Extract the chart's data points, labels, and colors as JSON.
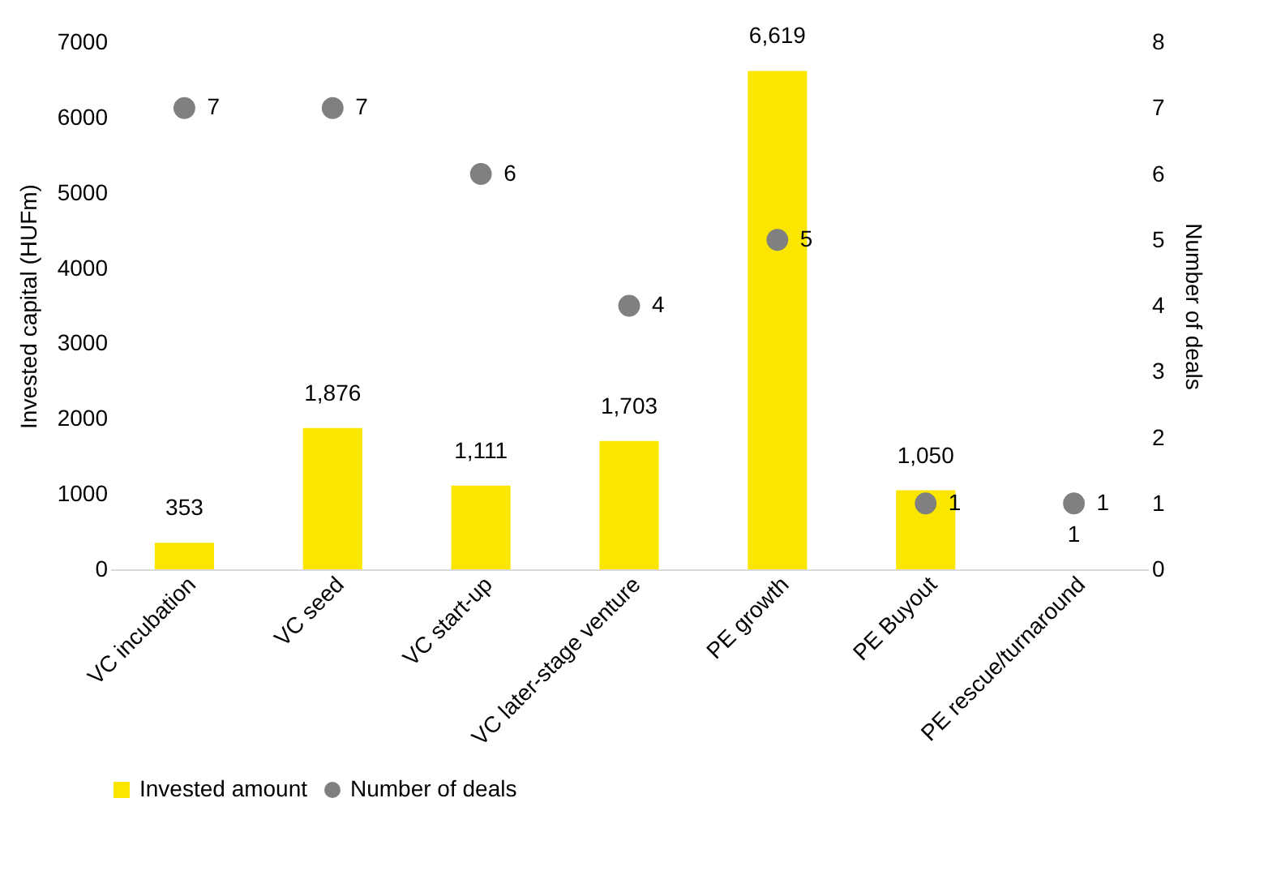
{
  "chart_data": {
    "type": "bar",
    "categories": [
      "VC incubation",
      "VC seed",
      "VC start-up",
      "VC later-stage venture",
      "PE growth",
      "PE Buyout",
      "PE rescue/turnaround"
    ],
    "ylabel": "Invested capital (HUFm)",
    "y2label": "Number of deals",
    "ylim": [
      0,
      7000
    ],
    "yticks": [
      0,
      1000,
      2000,
      3000,
      4000,
      5000,
      6000,
      7000
    ],
    "y2lim": [
      0,
      8
    ],
    "y2ticks": [
      0,
      1,
      2,
      3,
      4,
      5,
      6,
      7,
      8
    ],
    "legend": "bottom",
    "grid": false,
    "marker": "circle",
    "series": [
      {
        "name": "Invested amount",
        "color": "#fae600",
        "values": [
          353,
          1876,
          1111,
          1703,
          6619,
          1050,
          1
        ],
        "value_labels": [
          "353",
          "1,876",
          "1,111",
          "1,703",
          "6,619",
          "1,050",
          "1"
        ]
      },
      {
        "name": "Number of deals",
        "type": "scatter",
        "axis": "y2",
        "color": "#808080",
        "values": [
          7,
          7,
          6,
          4,
          5,
          1,
          1
        ],
        "value_labels": [
          "7",
          "7",
          "6",
          "4",
          "5",
          "1",
          "1"
        ]
      }
    ]
  }
}
